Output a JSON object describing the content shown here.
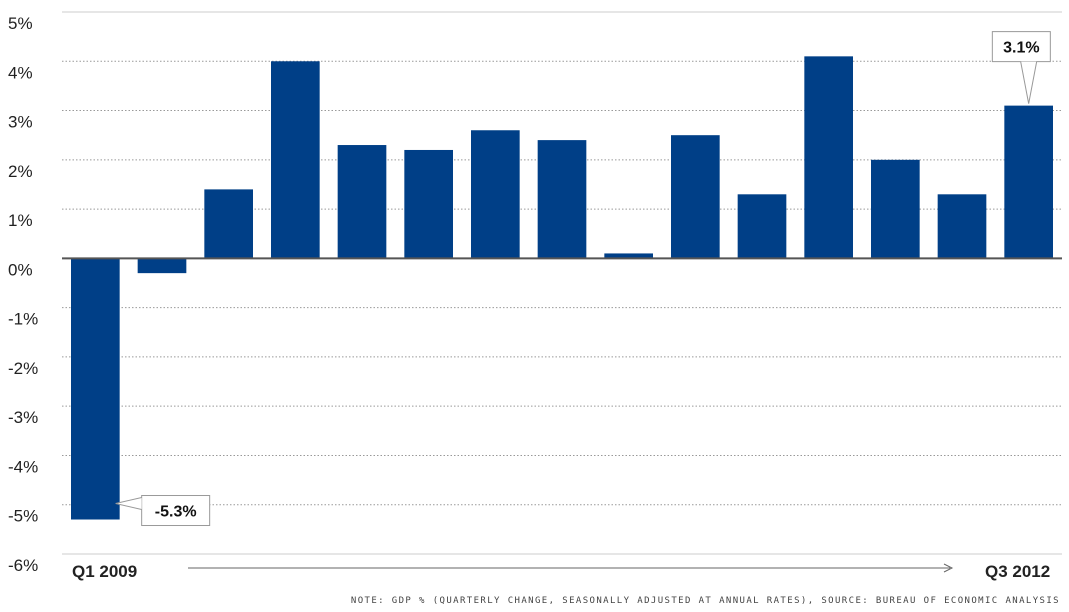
{
  "chart_data": {
    "type": "bar",
    "values": [
      -5.3,
      -0.3,
      1.4,
      4.0,
      2.3,
      2.2,
      2.6,
      2.4,
      0.1,
      2.5,
      1.3,
      4.1,
      2.0,
      1.3,
      3.1
    ],
    "ylim": [
      -6,
      5
    ],
    "yticks": [
      5,
      4,
      3,
      2,
      1,
      0,
      -1,
      -2,
      -3,
      -4,
      -5,
      -6
    ],
    "ytick_labels": [
      "5%",
      "4%",
      "3%",
      "2%",
      "1%",
      "0%",
      "-1%",
      "-2%",
      "-3%",
      "-4%",
      "-5%",
      "-6%"
    ],
    "start_label": "Q1 2009",
    "end_label": "Q3 2012",
    "annotations": [
      {
        "index": 0,
        "text": "-5.3%"
      },
      {
        "index": 14,
        "text": "3.1%"
      }
    ],
    "grid": true,
    "bar_color": "#003f87"
  },
  "note": "NOTE: GDP % (QUARTERLY CHANGE, SEASONALLY ADJUSTED AT ANNUAL RATES), SOURCE: BUREAU OF ECONOMIC ANALYSIS"
}
